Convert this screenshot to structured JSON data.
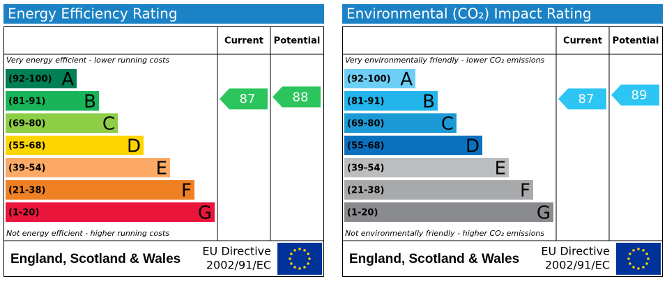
{
  "chart_data": [
    {
      "type": "epc-rating",
      "title": "Energy Efficiency Rating",
      "columns": [
        "Current",
        "Potential"
      ],
      "top_note": "Very energy efficient - lower running costs",
      "bottom_note": "Not energy efficient - higher running costs",
      "bands": [
        {
          "label": "(92-100)",
          "letter": "A",
          "color": "#008054"
        },
        {
          "label": "(81-91)",
          "letter": "B",
          "color": "#19b459"
        },
        {
          "label": "(69-80)",
          "letter": "C",
          "color": "#8dce46"
        },
        {
          "label": "(55-68)",
          "letter": "D",
          "color": "#ffd500"
        },
        {
          "label": "(39-54)",
          "letter": "E",
          "color": "#fcaa65"
        },
        {
          "label": "(21-38)",
          "letter": "F",
          "color": "#ef8023"
        },
        {
          "label": "(1-20)",
          "letter": "G",
          "color": "#e9153b"
        }
      ],
      "current": 87,
      "potential": 88,
      "arrow_color": "#2cc55d",
      "region": "England, Scotland & Wales",
      "directive": [
        "EU Directive",
        "2002/91/EC"
      ]
    },
    {
      "type": "epc-rating",
      "title": "Environmental (CO₂) Impact Rating",
      "columns": [
        "Current",
        "Potential"
      ],
      "top_note": "Very environmentally friendly - lower CO₂ emissions",
      "bottom_note": "Not environmentally friendly - higher CO₂ emissions",
      "bands": [
        {
          "label": "(92-100)",
          "letter": "A",
          "color": "#6ecff6"
        },
        {
          "label": "(81-91)",
          "letter": "B",
          "color": "#22b5ec"
        },
        {
          "label": "(69-80)",
          "letter": "C",
          "color": "#1c9ad6"
        },
        {
          "label": "(55-68)",
          "letter": "D",
          "color": "#0b71bf"
        },
        {
          "label": "(39-54)",
          "letter": "E",
          "color": "#bbbdbf"
        },
        {
          "label": "(21-38)",
          "letter": "F",
          "color": "#a7a9ab"
        },
        {
          "label": "(1-20)",
          "letter": "G",
          "color": "#898b8e"
        }
      ],
      "current": 87,
      "potential": 89,
      "arrow_color": "#2dc5f4",
      "region": "England, Scotland & Wales",
      "directive": [
        "EU Directive",
        "2002/91/EC"
      ]
    }
  ]
}
